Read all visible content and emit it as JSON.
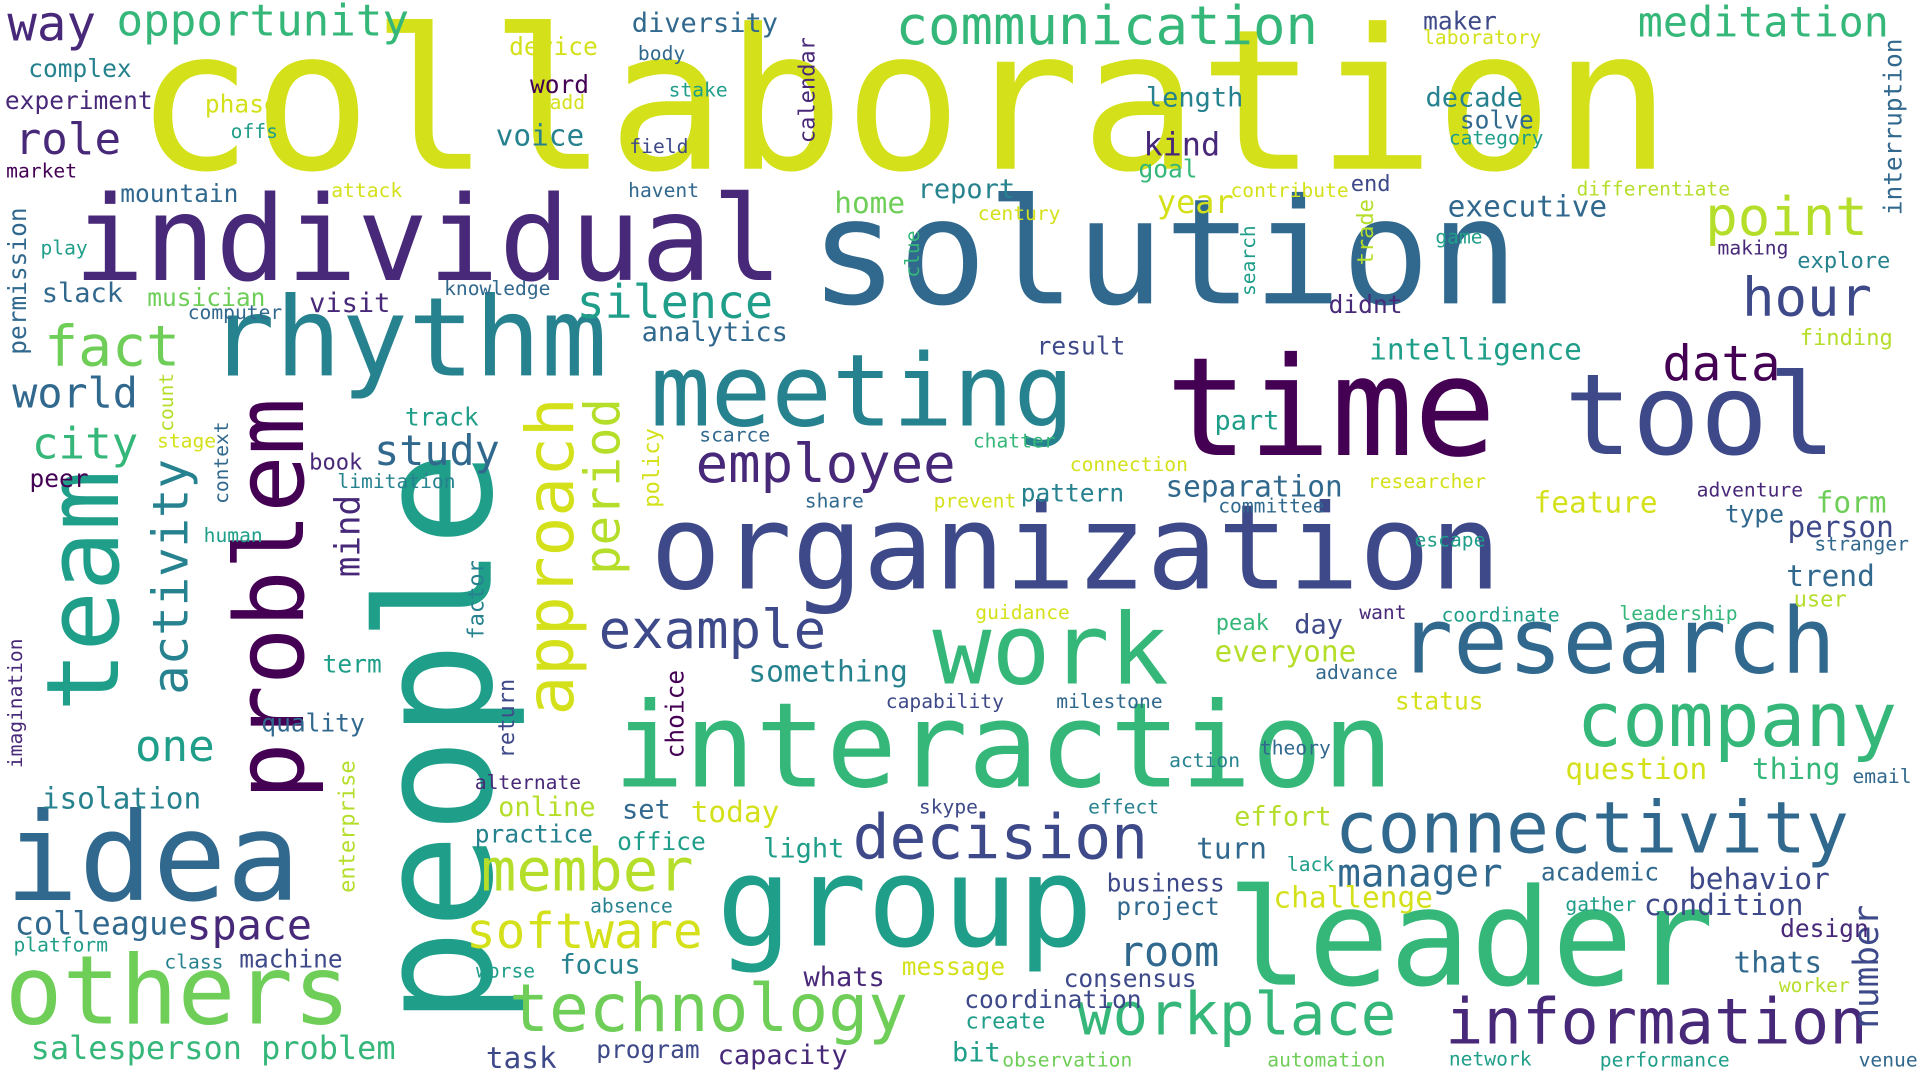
{
  "palette": [
    "#440154",
    "#482878",
    "#3e4989",
    "#31688e",
    "#26828e",
    "#1f9e89",
    "#35b779",
    "#6ece58",
    "#b5de2b",
    "#d4e11a"
  ],
  "words": [
    {
      "text": "collaboration",
      "c": 9
    },
    {
      "text": "solution",
      "c": 3
    },
    {
      "text": "time",
      "c": 0
    },
    {
      "text": "tool",
      "c": 2
    },
    {
      "text": "individual",
      "c": 1
    },
    {
      "text": "rhythm",
      "c": 4
    },
    {
      "text": "meeting",
      "c": 4
    },
    {
      "text": "organization",
      "c": 2
    },
    {
      "text": "people",
      "c": 5
    },
    {
      "text": "problem",
      "c": 0
    },
    {
      "text": "team",
      "c": 5
    },
    {
      "text": "idea",
      "c": 3
    },
    {
      "text": "others",
      "c": 7
    },
    {
      "text": "interaction",
      "c": 6
    },
    {
      "text": "group",
      "c": 5
    },
    {
      "text": "leader",
      "c": 6
    },
    {
      "text": "work",
      "c": 6
    },
    {
      "text": "research",
      "c": 3
    },
    {
      "text": "company",
      "c": 6
    },
    {
      "text": "connectivity",
      "c": 3
    },
    {
      "text": "decision",
      "c": 2
    },
    {
      "text": "technology",
      "c": 7
    },
    {
      "text": "information",
      "c": 1
    },
    {
      "text": "workplace",
      "c": 6
    },
    {
      "text": "approach",
      "c": 9
    },
    {
      "text": "employee",
      "c": 1
    },
    {
      "text": "example",
      "c": 2
    },
    {
      "text": "member",
      "c": 8
    },
    {
      "text": "software",
      "c": 9
    },
    {
      "text": "activity",
      "c": 4
    },
    {
      "text": "period",
      "c": 8
    },
    {
      "text": "silence",
      "c": 5
    },
    {
      "text": "data",
      "c": 0
    },
    {
      "text": "point",
      "c": 8
    },
    {
      "text": "hour",
      "c": 2
    },
    {
      "text": "fact",
      "c": 7
    },
    {
      "text": "way",
      "c": 1
    },
    {
      "text": "opportunity",
      "c": 6
    },
    {
      "text": "communication",
      "c": 6
    },
    {
      "text": "meditation",
      "c": 6
    },
    {
      "text": "role",
      "c": 1
    },
    {
      "text": "world",
      "c": 3
    },
    {
      "text": "city",
      "c": 6
    },
    {
      "text": "one",
      "c": 5
    },
    {
      "text": "space",
      "c": 1
    },
    {
      "text": "room",
      "c": 3
    },
    {
      "text": "number",
      "c": 2
    },
    {
      "text": "manager",
      "c": 3
    },
    {
      "text": "study",
      "c": 3
    },
    {
      "text": "mind",
      "c": 1
    },
    {
      "text": "salesperson problem",
      "c": 6
    },
    {
      "text": "colleague",
      "c": 3
    },
    {
      "text": "isolation",
      "c": 4
    },
    {
      "text": "executive",
      "c": 3
    },
    {
      "text": "intelligence",
      "c": 5
    },
    {
      "text": "separation",
      "c": 3
    },
    {
      "text": "feature",
      "c": 9
    },
    {
      "text": "form",
      "c": 7
    },
    {
      "text": "person",
      "c": 2
    },
    {
      "text": "trend",
      "c": 3
    },
    {
      "text": "thing",
      "c": 6
    },
    {
      "text": "question",
      "c": 9
    },
    {
      "text": "challenge",
      "c": 9
    },
    {
      "text": "behavior",
      "c": 2
    },
    {
      "text": "condition",
      "c": 2
    },
    {
      "text": "design",
      "c": 1
    },
    {
      "text": "thats",
      "c": 3
    },
    {
      "text": "focus",
      "c": 4
    },
    {
      "text": "whats",
      "c": 1
    },
    {
      "text": "something",
      "c": 4
    },
    {
      "text": "everyone",
      "c": 8
    },
    {
      "text": "day",
      "c": 2
    },
    {
      "text": "today",
      "c": 9
    },
    {
      "text": "online",
      "c": 8
    },
    {
      "text": "set",
      "c": 3
    },
    {
      "text": "office",
      "c": 5
    },
    {
      "text": "practice",
      "c": 4
    },
    {
      "text": "light",
      "c": 5
    },
    {
      "text": "turn",
      "c": 3
    },
    {
      "text": "effort",
      "c": 8
    },
    {
      "text": "business",
      "c": 2
    },
    {
      "text": "project",
      "c": 3
    },
    {
      "text": "academic",
      "c": 3
    },
    {
      "text": "consensus",
      "c": 2
    },
    {
      "text": "coordination",
      "c": 2
    },
    {
      "text": "task",
      "c": 2
    },
    {
      "text": "program",
      "c": 2
    },
    {
      "text": "capacity",
      "c": 1
    },
    {
      "text": "bit",
      "c": 5
    },
    {
      "text": "machine",
      "c": 2
    },
    {
      "text": "message",
      "c": 9
    },
    {
      "text": "report",
      "c": 4
    },
    {
      "text": "home",
      "c": 7
    },
    {
      "text": "year",
      "c": 9
    },
    {
      "text": "kind",
      "c": 1
    },
    {
      "text": "goal",
      "c": 6
    },
    {
      "text": "length",
      "c": 4
    },
    {
      "text": "voice",
      "c": 4
    },
    {
      "text": "word",
      "c": 0
    },
    {
      "text": "diversity",
      "c": 3
    },
    {
      "text": "maker",
      "c": 2
    },
    {
      "text": "decade",
      "c": 4
    },
    {
      "text": "solve",
      "c": 3
    },
    {
      "text": "analytics",
      "c": 3
    },
    {
      "text": "visit",
      "c": 1
    },
    {
      "text": "slack",
      "c": 3
    },
    {
      "text": "musician",
      "c": 7
    },
    {
      "text": "mountain",
      "c": 3
    },
    {
      "text": "experiment",
      "c": 1
    },
    {
      "text": "complex",
      "c": 4
    },
    {
      "text": "phase",
      "c": 9
    },
    {
      "text": "device",
      "c": 9
    },
    {
      "text": "track",
      "c": 5
    },
    {
      "text": "part",
      "c": 5
    },
    {
      "text": "pattern",
      "c": 4
    },
    {
      "text": "result",
      "c": 2
    },
    {
      "text": "didnt",
      "c": 1
    },
    {
      "text": "end",
      "c": 2
    },
    {
      "text": "explore",
      "c": 4
    },
    {
      "text": "finding",
      "c": 8
    },
    {
      "text": "user",
      "c": 8
    },
    {
      "text": "type",
      "c": 3
    },
    {
      "text": "peer",
      "c": 0
    },
    {
      "text": "book",
      "c": 1
    },
    {
      "text": "quality",
      "c": 3
    },
    {
      "text": "term",
      "c": 5
    },
    {
      "text": "permission",
      "c": 3
    },
    {
      "text": "factor",
      "c": 4
    },
    {
      "text": "return",
      "c": 2
    },
    {
      "text": "choice",
      "c": 0
    },
    {
      "text": "policy",
      "c": 9
    },
    {
      "text": "enterprise",
      "c": 8
    },
    {
      "text": "imagination",
      "c": 1
    },
    {
      "text": "calendar",
      "c": 1
    },
    {
      "text": "interruption",
      "c": 3
    },
    {
      "text": "trade",
      "c": 8
    },
    {
      "text": "laboratory",
      "c": 9
    },
    {
      "text": "category",
      "c": 5
    },
    {
      "text": "body",
      "c": 3
    },
    {
      "text": "stake",
      "c": 5
    },
    {
      "text": "field",
      "c": 2
    },
    {
      "text": "havent",
      "c": 3
    },
    {
      "text": "offs",
      "c": 5
    },
    {
      "text": "add",
      "c": 9
    },
    {
      "text": "market",
      "c": 0
    },
    {
      "text": "attack",
      "c": 9
    },
    {
      "text": "play",
      "c": 5
    },
    {
      "text": "knowledge",
      "c": 3
    },
    {
      "text": "computer",
      "c": 3
    },
    {
      "text": "count",
      "c": 8
    },
    {
      "text": "stage",
      "c": 9
    },
    {
      "text": "context",
      "c": 3
    },
    {
      "text": "human",
      "c": 5
    },
    {
      "text": "limitation",
      "c": 4
    },
    {
      "text": "scarce",
      "c": 3
    },
    {
      "text": "share",
      "c": 3
    },
    {
      "text": "prevent",
      "c": 9
    },
    {
      "text": "chatter",
      "c": 6
    },
    {
      "text": "connection",
      "c": 9
    },
    {
      "text": "committee",
      "c": 3
    },
    {
      "text": "researcher",
      "c": 9
    },
    {
      "text": "adventure",
      "c": 1
    },
    {
      "text": "stranger",
      "c": 3
    },
    {
      "text": "escape",
      "c": 5
    },
    {
      "text": "guidance",
      "c": 9
    },
    {
      "text": "want",
      "c": 1
    },
    {
      "text": "coordinate",
      "c": 5
    },
    {
      "text": "leadership",
      "c": 6
    },
    {
      "text": "peak",
      "c": 6
    },
    {
      "text": "advance",
      "c": 3
    },
    {
      "text": "status",
      "c": 9
    },
    {
      "text": "capability",
      "c": 2
    },
    {
      "text": "milestone",
      "c": 3
    },
    {
      "text": "theory",
      "c": 3
    },
    {
      "text": "action",
      "c": 4
    },
    {
      "text": "email",
      "c": 3
    },
    {
      "text": "alternate",
      "c": 1
    },
    {
      "text": "skype",
      "c": 2
    },
    {
      "text": "effect",
      "c": 4
    },
    {
      "text": "lack",
      "c": 5
    },
    {
      "text": "absence",
      "c": 4
    },
    {
      "text": "gather",
      "c": 5
    },
    {
      "text": "platform",
      "c": 5
    },
    {
      "text": "class",
      "c": 4
    },
    {
      "text": "worse",
      "c": 5
    },
    {
      "text": "create",
      "c": 5
    },
    {
      "text": "worker",
      "c": 8
    },
    {
      "text": "observation",
      "c": 7
    },
    {
      "text": "automation",
      "c": 7
    },
    {
      "text": "network",
      "c": 5
    },
    {
      "text": "performance",
      "c": 5
    },
    {
      "text": "venue",
      "c": 3
    },
    {
      "text": "clue",
      "c": 6
    },
    {
      "text": "search",
      "c": 5
    },
    {
      "text": "century",
      "c": 9
    },
    {
      "text": "contribute",
      "c": 9
    },
    {
      "text": "differentiate",
      "c": 8
    },
    {
      "text": "game",
      "c": 5
    },
    {
      "text": "making",
      "c": 1
    }
  ]
}
